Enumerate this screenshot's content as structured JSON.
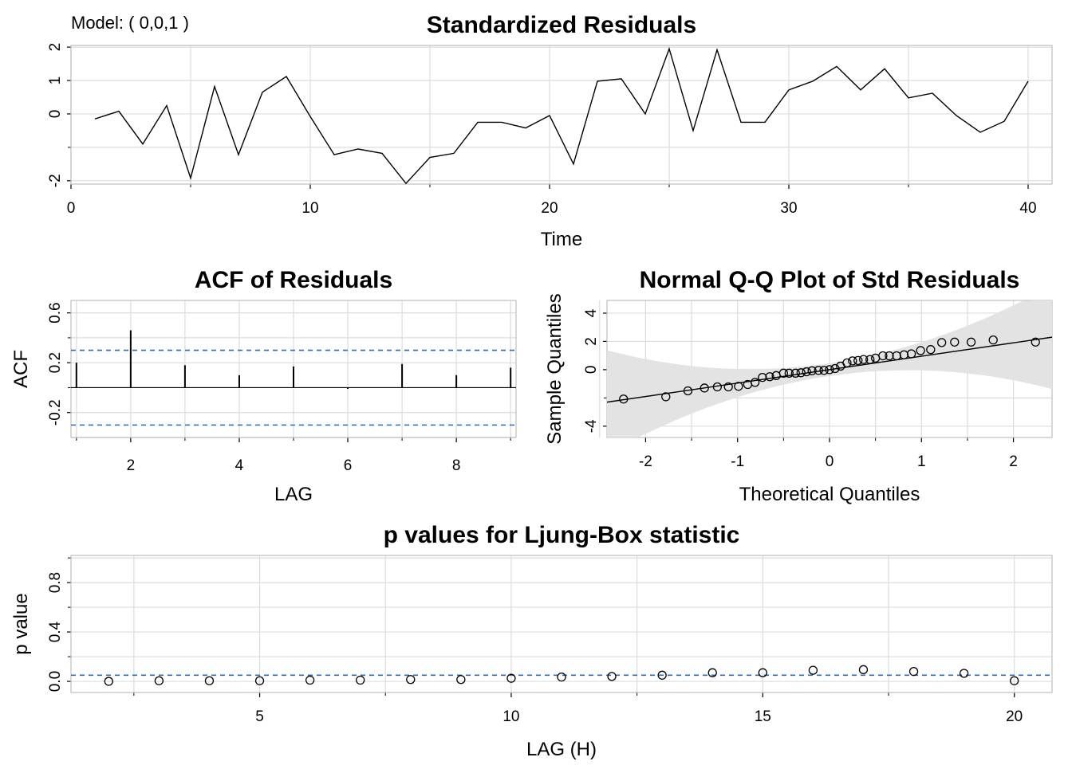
{
  "model_label": "Model: ( 0,0,1 )",
  "chart_data": [
    {
      "id": "std_resid",
      "type": "line",
      "title": "Standardized Residuals",
      "xlabel": "Time",
      "ylabel": "",
      "xlim": [
        0,
        41
      ],
      "ylim": [
        -2.1,
        2.05
      ],
      "xticks": [
        0,
        10,
        20,
        30,
        40
      ],
      "yticks": [
        -2,
        0,
        1,
        2
      ],
      "ytick_labels": [
        "-2",
        "0",
        "1",
        "2"
      ],
      "grid": true,
      "x": [
        1,
        2,
        3,
        4,
        5,
        6,
        7,
        8,
        9,
        10,
        11,
        12,
        13,
        14,
        15,
        16,
        17,
        18,
        19,
        20,
        21,
        22,
        23,
        24,
        25,
        26,
        27,
        28,
        29,
        30,
        31,
        32,
        33,
        34,
        35,
        36,
        37,
        38,
        39,
        40
      ],
      "values": [
        -0.15,
        0.08,
        -0.9,
        0.25,
        -1.92,
        0.82,
        -1.22,
        0.65,
        1.12,
        -0.08,
        -1.22,
        -1.05,
        -1.18,
        -2.08,
        -1.3,
        -1.18,
        -0.25,
        -0.25,
        -0.42,
        -0.05,
        -1.5,
        0.98,
        1.05,
        0.0,
        1.95,
        -0.5,
        1.92,
        -0.25,
        -0.25,
        0.72,
        0.98,
        1.42,
        0.72,
        1.35,
        0.48,
        0.62,
        -0.05,
        -0.55,
        -0.22,
        0.98
      ]
    },
    {
      "id": "acf",
      "type": "bar",
      "title": "ACF of Residuals",
      "xlabel": "LAG",
      "ylabel": "ACF",
      "xlim": [
        0.9,
        9.1
      ],
      "ylim": [
        -0.4,
        0.7
      ],
      "xticks": [
        2,
        4,
        6,
        8
      ],
      "yticks": [
        -0.2,
        0.2,
        0.6
      ],
      "ytick_labels": [
        "-0.2",
        "0.2",
        "0.6"
      ],
      "grid": true,
      "lags": [
        1,
        2,
        3,
        4,
        5,
        6,
        7,
        8,
        9
      ],
      "values": [
        0.2,
        0.46,
        0.18,
        0.1,
        0.17,
        -0.01,
        0.19,
        0.1,
        0.16
      ],
      "conf_band": 0.3
    },
    {
      "id": "qq",
      "type": "scatter",
      "title": "Normal Q-Q Plot of Std Residuals",
      "xlabel": "Theoretical Quantiles",
      "ylabel": "Sample Quantiles",
      "xlim": [
        -2.42,
        2.42
      ],
      "ylim": [
        -4.8,
        4.9
      ],
      "xticks": [
        -2,
        -1,
        0,
        1,
        2
      ],
      "yticks": [
        -4,
        0,
        2,
        4
      ],
      "ytick_labels": [
        "-4",
        "0",
        "2",
        "4"
      ],
      "grid": true,
      "ref_line": {
        "intercept": 0.0,
        "slope": 0.95
      },
      "points": [
        [
          -2.24,
          -2.08
        ],
        [
          -1.78,
          -1.92
        ],
        [
          -1.54,
          -1.5
        ],
        [
          -1.36,
          -1.3
        ],
        [
          -1.22,
          -1.22
        ],
        [
          -1.1,
          -1.22
        ],
        [
          -0.99,
          -1.18
        ],
        [
          -0.89,
          -1.05
        ],
        [
          -0.81,
          -0.9
        ],
        [
          -0.73,
          -0.55
        ],
        [
          -0.65,
          -0.5
        ],
        [
          -0.58,
          -0.42
        ],
        [
          -0.5,
          -0.25
        ],
        [
          -0.44,
          -0.25
        ],
        [
          -0.37,
          -0.25
        ],
        [
          -0.31,
          -0.22
        ],
        [
          -0.25,
          -0.15
        ],
        [
          -0.19,
          -0.08
        ],
        [
          -0.12,
          -0.05
        ],
        [
          -0.06,
          -0.05
        ],
        [
          0.0,
          0.0
        ],
        [
          0.06,
          0.08
        ],
        [
          0.12,
          0.25
        ],
        [
          0.19,
          0.48
        ],
        [
          0.25,
          0.62
        ],
        [
          0.31,
          0.65
        ],
        [
          0.37,
          0.72
        ],
        [
          0.44,
          0.72
        ],
        [
          0.5,
          0.82
        ],
        [
          0.58,
          0.98
        ],
        [
          0.65,
          0.98
        ],
        [
          0.73,
          0.98
        ],
        [
          0.81,
          1.05
        ],
        [
          0.89,
          1.12
        ],
        [
          0.99,
          1.35
        ],
        [
          1.1,
          1.42
        ],
        [
          1.22,
          1.92
        ],
        [
          1.36,
          1.95
        ],
        [
          1.54,
          1.95
        ],
        [
          1.78,
          2.1
        ],
        [
          2.24,
          1.95
        ]
      ]
    },
    {
      "id": "ljung_box",
      "type": "scatter",
      "title": "p values for Ljung-Box statistic",
      "xlabel": "LAG (H)",
      "ylabel": "p value",
      "xlim": [
        1.25,
        20.75
      ],
      "ylim": [
        -0.09,
        1.02
      ],
      "xticks": [
        5,
        10,
        15,
        20
      ],
      "yticks": [
        0.0,
        0.4,
        0.8
      ],
      "ytick_labels": [
        "0.0",
        "0.4",
        "0.8"
      ],
      "grid": true,
      "threshold": 0.05,
      "lags": [
        2,
        3,
        4,
        5,
        6,
        7,
        8,
        9,
        10,
        11,
        12,
        13,
        14,
        15,
        16,
        17,
        18,
        19,
        20
      ],
      "values": [
        0.0,
        0.005,
        0.005,
        0.005,
        0.01,
        0.01,
        0.015,
        0.015,
        0.025,
        0.035,
        0.04,
        0.05,
        0.07,
        0.07,
        0.09,
        0.095,
        0.08,
        0.065,
        0.005
      ]
    }
  ]
}
